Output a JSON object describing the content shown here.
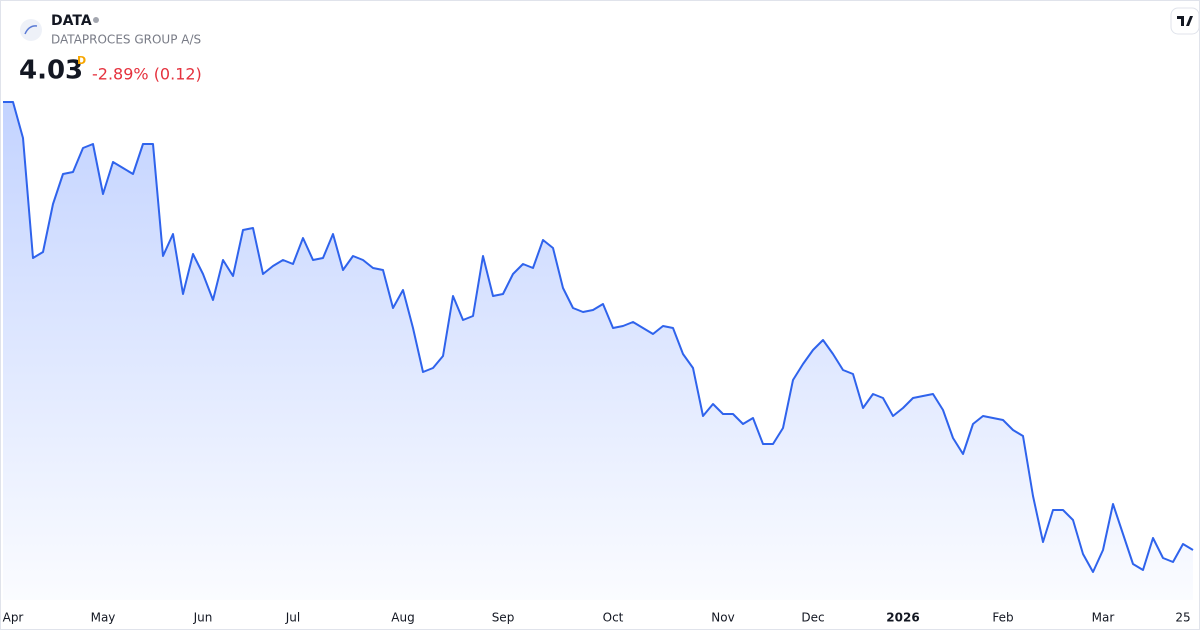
{
  "chart_data": {
    "type": "line",
    "symbol": "DATA",
    "subtitle": "DATAPROCES GROUP A/S",
    "price": "4.03",
    "interval": "D",
    "change": "-2.89% (0.12)",
    "change_color": "#e5323e",
    "categories": [
      null,
      "Apr",
      null,
      null,
      null,
      null,
      null,
      null,
      null,
      null,
      "May",
      null,
      null,
      null,
      null,
      null,
      null,
      null,
      null,
      null,
      "Jun",
      null,
      null,
      null,
      null,
      null,
      null,
      null,
      null,
      "Jul",
      null,
      null,
      null,
      null,
      null,
      null,
      null,
      null,
      null,
      null,
      "Aug",
      null,
      null,
      null,
      null,
      null,
      null,
      null,
      null,
      null,
      "Sep",
      null,
      null,
      null,
      null,
      null,
      null,
      null,
      null,
      null,
      null,
      "Oct",
      null,
      null,
      null,
      null,
      null,
      null,
      null,
      null,
      null,
      null,
      "Nov",
      null,
      null,
      null,
      null,
      null,
      null,
      null,
      null,
      "Dec",
      null,
      null,
      null,
      null,
      null,
      null,
      null,
      null,
      "2026",
      null,
      null,
      null,
      null,
      null,
      null,
      null,
      null,
      null,
      "Feb",
      null,
      null,
      null,
      null,
      null,
      null,
      null,
      null,
      null,
      "Mar",
      null,
      null,
      null,
      null,
      null,
      null,
      null,
      "25",
      null
    ],
    "series": [
      {
        "color": "#2f63ec",
        "values": [
          6.27,
          6.27,
          6.09,
          5.49,
          5.52,
          5.76,
          5.91,
          5.92,
          6.04,
          6.06,
          5.81,
          5.97,
          5.94,
          5.91,
          6.06,
          6.06,
          5.5,
          5.61,
          5.31,
          5.51,
          5.41,
          5.28,
          5.48,
          5.4,
          5.63,
          5.64,
          5.41,
          5.45,
          5.48,
          5.46,
          5.59,
          5.48,
          5.49,
          5.61,
          5.43,
          5.5,
          5.48,
          5.44,
          5.43,
          5.24,
          5.33,
          5.14,
          4.92,
          4.94,
          5.0,
          5.3,
          5.18,
          5.2,
          5.5,
          5.3,
          5.31,
          5.41,
          5.46,
          5.44,
          5.58,
          5.54,
          5.34,
          5.24,
          5.22,
          5.23,
          5.26,
          5.14,
          5.15,
          5.17,
          5.14,
          5.11,
          5.15,
          5.14,
          5.01,
          4.94,
          4.7,
          4.76,
          4.71,
          4.71,
          4.66,
          4.69,
          4.56,
          4.56,
          4.64,
          4.88,
          4.96,
          5.03,
          5.08,
          5.01,
          4.93,
          4.91,
          4.74,
          4.81,
          4.79,
          4.7,
          4.74,
          4.79,
          4.8,
          4.81,
          4.73,
          4.59,
          4.51,
          4.66,
          4.7,
          4.69,
          4.68,
          4.63,
          4.6,
          4.3,
          4.07,
          4.23,
          4.23,
          4.18,
          4.01,
          3.92,
          4.03,
          4.26,
          4.11,
          3.96,
          3.93,
          4.09,
          3.99,
          3.97,
          4.06,
          4.03
        ]
      }
    ],
    "ylim": [
      3.78,
      6.27
    ]
  }
}
